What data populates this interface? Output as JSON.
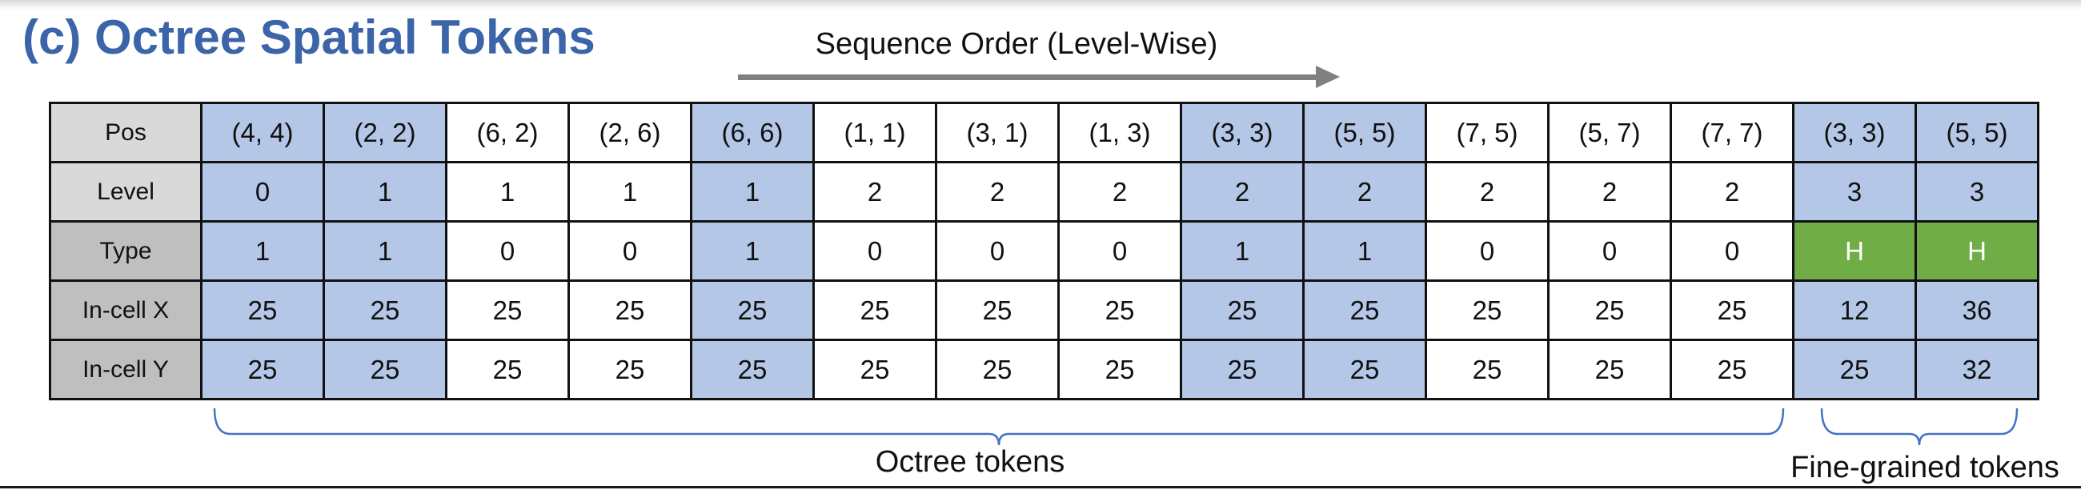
{
  "title": "(c) Octree Spatial Tokens",
  "sequence_label": "Sequence Order (Level-Wise)",
  "row_labels": [
    "Pos",
    "Level",
    "Type",
    "In-cell X",
    "In-cell Y"
  ],
  "tokens": [
    {
      "pos": "(4, 4)",
      "level": "0",
      "type": "1",
      "x": "25",
      "y": "25",
      "group": "octree",
      "highlight": true
    },
    {
      "pos": "(2, 2)",
      "level": "1",
      "type": "1",
      "x": "25",
      "y": "25",
      "group": "octree",
      "highlight": true
    },
    {
      "pos": "(6, 2)",
      "level": "1",
      "type": "0",
      "x": "25",
      "y": "25",
      "group": "octree",
      "highlight": false
    },
    {
      "pos": "(2, 6)",
      "level": "1",
      "type": "0",
      "x": "25",
      "y": "25",
      "group": "octree",
      "highlight": false
    },
    {
      "pos": "(6, 6)",
      "level": "1",
      "type": "1",
      "x": "25",
      "y": "25",
      "group": "octree",
      "highlight": true
    },
    {
      "pos": "(1, 1)",
      "level": "2",
      "type": "0",
      "x": "25",
      "y": "25",
      "group": "octree",
      "highlight": false
    },
    {
      "pos": "(3, 1)",
      "level": "2",
      "type": "0",
      "x": "25",
      "y": "25",
      "group": "octree",
      "highlight": false
    },
    {
      "pos": "(1, 3)",
      "level": "2",
      "type": "0",
      "x": "25",
      "y": "25",
      "group": "octree",
      "highlight": false
    },
    {
      "pos": "(3, 3)",
      "level": "2",
      "type": "1",
      "x": "25",
      "y": "25",
      "group": "octree",
      "highlight": true
    },
    {
      "pos": "(5, 5)",
      "level": "2",
      "type": "1",
      "x": "25",
      "y": "25",
      "group": "octree",
      "highlight": true
    },
    {
      "pos": "(7, 5)",
      "level": "2",
      "type": "0",
      "x": "25",
      "y": "25",
      "group": "octree",
      "highlight": false
    },
    {
      "pos": "(5, 7)",
      "level": "2",
      "type": "0",
      "x": "25",
      "y": "25",
      "group": "octree",
      "highlight": false
    },
    {
      "pos": "(7, 7)",
      "level": "2",
      "type": "0",
      "x": "25",
      "y": "25",
      "group": "octree",
      "highlight": false
    },
    {
      "pos": "(3, 3)",
      "level": "3",
      "type": "H",
      "x": "12",
      "y": "25",
      "group": "fine",
      "highlight": true
    },
    {
      "pos": "(5, 5)",
      "level": "3",
      "type": "H",
      "x": "36",
      "y": "32",
      "group": "fine",
      "highlight": true
    }
  ],
  "group_labels": {
    "octree": "Octree tokens",
    "fine": "Fine-grained tokens"
  },
  "colors": {
    "title": "#3c64a8",
    "highlight_cell": "#b4c7e7",
    "fine_type_cell": "#70ad47",
    "header_light": "#d9d9d9",
    "header_dark": "#bfbfbf",
    "arrow": "#808080",
    "brace": "#4472c4"
  }
}
